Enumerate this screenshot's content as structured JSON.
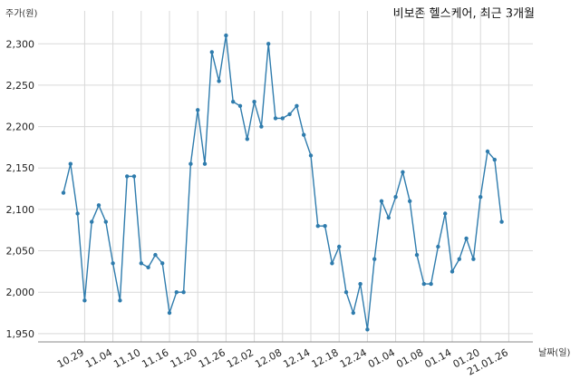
{
  "chart_data": {
    "type": "line",
    "title": "비보존 헬스케어, 최근 3개월",
    "ylabel": "주가(원)",
    "xlabel": "날짜(일)",
    "ylim": [
      1940,
      2320
    ],
    "yticks": [
      1950,
      2000,
      2050,
      2100,
      2150,
      2200,
      2250,
      2300
    ],
    "ytick_labels": [
      "1,950",
      "2,000",
      "2,050",
      "2,100",
      "2,150",
      "2,200",
      "2,250",
      "2,300"
    ],
    "xticks": [
      {
        "i": 3,
        "label": "10.29"
      },
      {
        "i": 7,
        "label": "11.04"
      },
      {
        "i": 11,
        "label": "11.10"
      },
      {
        "i": 15,
        "label": "11.16"
      },
      {
        "i": 19,
        "label": "11.20"
      },
      {
        "i": 23,
        "label": "11.26"
      },
      {
        "i": 27,
        "label": "12.02"
      },
      {
        "i": 31,
        "label": "12.08"
      },
      {
        "i": 35,
        "label": "12.14"
      },
      {
        "i": 39,
        "label": "12.18"
      },
      {
        "i": 43,
        "label": "12.24"
      },
      {
        "i": 47,
        "label": "01.04"
      },
      {
        "i": 51,
        "label": "01.08"
      },
      {
        "i": 55,
        "label": "01.14"
      },
      {
        "i": 59,
        "label": "01.20"
      },
      {
        "i": 63,
        "label": "21.01.26"
      }
    ],
    "grid": true,
    "series": [
      {
        "values": [
          2120,
          2155,
          2095,
          1990,
          2085,
          2105,
          2085,
          2035,
          1990,
          2140,
          2140,
          2035,
          2030,
          2045,
          2035,
          1975,
          2000,
          2000,
          2155,
          2220,
          2155,
          2290,
          2255,
          2310,
          2230,
          2225,
          2185,
          2230,
          2200,
          2300,
          2210,
          2210,
          2215,
          2225,
          2190,
          2165,
          2080,
          2080,
          2035,
          2055,
          2000,
          1975,
          2010,
          1955,
          2040,
          2110,
          2090,
          2115,
          2145,
          2110,
          2045,
          2010,
          2010,
          2055,
          2095,
          2025,
          2040,
          2065,
          2040,
          2115,
          2170,
          2160,
          2085
        ]
      }
    ]
  }
}
